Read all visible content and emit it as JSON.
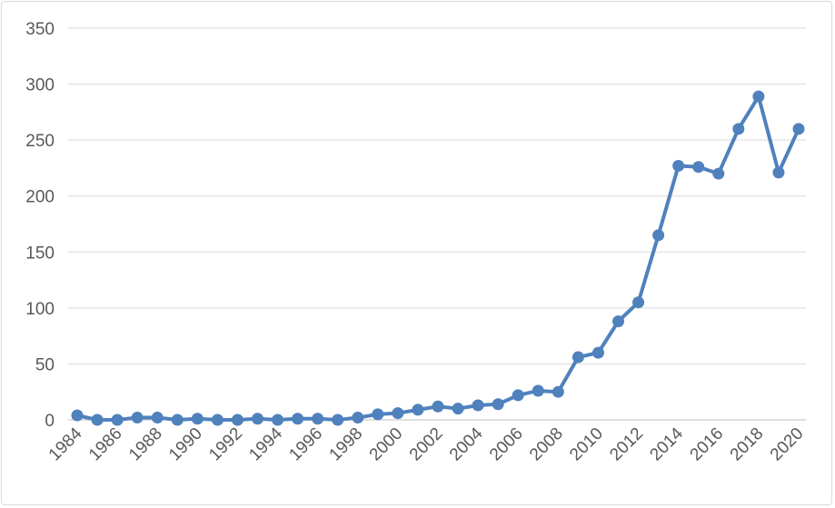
{
  "chart_data": {
    "type": "line",
    "title": "",
    "xlabel": "",
    "ylabel": "",
    "ylim": [
      0,
      350
    ],
    "yticks": [
      0,
      50,
      100,
      150,
      200,
      250,
      300,
      350
    ],
    "xticks": [
      "1984",
      "1986",
      "1988",
      "1990",
      "1992",
      "1994",
      "1996",
      "1998",
      "2000",
      "2002",
      "2004",
      "2006",
      "2008",
      "2010",
      "2012",
      "2014",
      "2016",
      "2018",
      "2020"
    ],
    "grid": true,
    "legend": "none",
    "series_color": "#4f81bd",
    "x": [
      1984,
      1985,
      1986,
      1987,
      1988,
      1989,
      1990,
      1991,
      1992,
      1993,
      1994,
      1995,
      1996,
      1997,
      1998,
      1999,
      2000,
      2001,
      2002,
      2003,
      2004,
      2005,
      2006,
      2007,
      2008,
      2009,
      2010,
      2011,
      2012,
      2013,
      2014,
      2015,
      2016,
      2017,
      2018,
      2019,
      2020
    ],
    "series": [
      {
        "values": [
          4,
          0,
          0,
          2,
          2,
          0,
          1,
          0,
          0,
          1,
          0,
          1,
          1,
          0,
          2,
          5,
          6,
          9,
          12,
          10,
          13,
          14,
          22,
          26,
          25,
          56,
          60,
          88,
          105,
          165,
          227,
          226,
          220,
          260,
          289,
          221,
          260
        ]
      }
    ]
  }
}
